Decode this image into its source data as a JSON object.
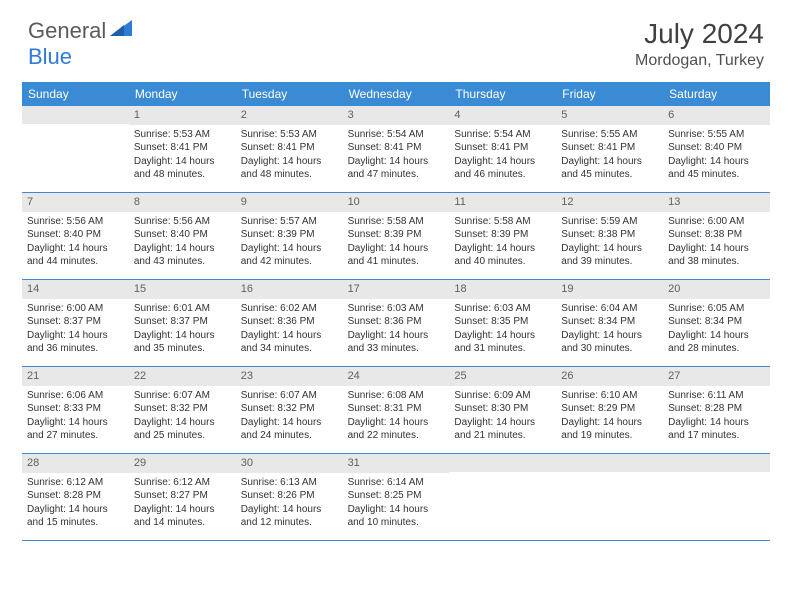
{
  "logo": {
    "part1": "General",
    "part2": "Blue"
  },
  "title": "July 2024",
  "location": "Mordogan, Turkey",
  "colors": {
    "header_bg": "#3b8bd4",
    "header_text": "#ffffff",
    "daynum_bg": "#e8e8e8",
    "border": "#3b8bd4",
    "logo_gray": "#5a5a5a",
    "logo_blue": "#2e7cd6"
  },
  "day_names": [
    "Sunday",
    "Monday",
    "Tuesday",
    "Wednesday",
    "Thursday",
    "Friday",
    "Saturday"
  ],
  "weeks": [
    [
      {
        "n": "",
        "sr": "",
        "ss": "",
        "dl": ""
      },
      {
        "n": "1",
        "sr": "Sunrise: 5:53 AM",
        "ss": "Sunset: 8:41 PM",
        "dl": "Daylight: 14 hours and 48 minutes."
      },
      {
        "n": "2",
        "sr": "Sunrise: 5:53 AM",
        "ss": "Sunset: 8:41 PM",
        "dl": "Daylight: 14 hours and 48 minutes."
      },
      {
        "n": "3",
        "sr": "Sunrise: 5:54 AM",
        "ss": "Sunset: 8:41 PM",
        "dl": "Daylight: 14 hours and 47 minutes."
      },
      {
        "n": "4",
        "sr": "Sunrise: 5:54 AM",
        "ss": "Sunset: 8:41 PM",
        "dl": "Daylight: 14 hours and 46 minutes."
      },
      {
        "n": "5",
        "sr": "Sunrise: 5:55 AM",
        "ss": "Sunset: 8:41 PM",
        "dl": "Daylight: 14 hours and 45 minutes."
      },
      {
        "n": "6",
        "sr": "Sunrise: 5:55 AM",
        "ss": "Sunset: 8:40 PM",
        "dl": "Daylight: 14 hours and 45 minutes."
      }
    ],
    [
      {
        "n": "7",
        "sr": "Sunrise: 5:56 AM",
        "ss": "Sunset: 8:40 PM",
        "dl": "Daylight: 14 hours and 44 minutes."
      },
      {
        "n": "8",
        "sr": "Sunrise: 5:56 AM",
        "ss": "Sunset: 8:40 PM",
        "dl": "Daylight: 14 hours and 43 minutes."
      },
      {
        "n": "9",
        "sr": "Sunrise: 5:57 AM",
        "ss": "Sunset: 8:39 PM",
        "dl": "Daylight: 14 hours and 42 minutes."
      },
      {
        "n": "10",
        "sr": "Sunrise: 5:58 AM",
        "ss": "Sunset: 8:39 PM",
        "dl": "Daylight: 14 hours and 41 minutes."
      },
      {
        "n": "11",
        "sr": "Sunrise: 5:58 AM",
        "ss": "Sunset: 8:39 PM",
        "dl": "Daylight: 14 hours and 40 minutes."
      },
      {
        "n": "12",
        "sr": "Sunrise: 5:59 AM",
        "ss": "Sunset: 8:38 PM",
        "dl": "Daylight: 14 hours and 39 minutes."
      },
      {
        "n": "13",
        "sr": "Sunrise: 6:00 AM",
        "ss": "Sunset: 8:38 PM",
        "dl": "Daylight: 14 hours and 38 minutes."
      }
    ],
    [
      {
        "n": "14",
        "sr": "Sunrise: 6:00 AM",
        "ss": "Sunset: 8:37 PM",
        "dl": "Daylight: 14 hours and 36 minutes."
      },
      {
        "n": "15",
        "sr": "Sunrise: 6:01 AM",
        "ss": "Sunset: 8:37 PM",
        "dl": "Daylight: 14 hours and 35 minutes."
      },
      {
        "n": "16",
        "sr": "Sunrise: 6:02 AM",
        "ss": "Sunset: 8:36 PM",
        "dl": "Daylight: 14 hours and 34 minutes."
      },
      {
        "n": "17",
        "sr": "Sunrise: 6:03 AM",
        "ss": "Sunset: 8:36 PM",
        "dl": "Daylight: 14 hours and 33 minutes."
      },
      {
        "n": "18",
        "sr": "Sunrise: 6:03 AM",
        "ss": "Sunset: 8:35 PM",
        "dl": "Daylight: 14 hours and 31 minutes."
      },
      {
        "n": "19",
        "sr": "Sunrise: 6:04 AM",
        "ss": "Sunset: 8:34 PM",
        "dl": "Daylight: 14 hours and 30 minutes."
      },
      {
        "n": "20",
        "sr": "Sunrise: 6:05 AM",
        "ss": "Sunset: 8:34 PM",
        "dl": "Daylight: 14 hours and 28 minutes."
      }
    ],
    [
      {
        "n": "21",
        "sr": "Sunrise: 6:06 AM",
        "ss": "Sunset: 8:33 PM",
        "dl": "Daylight: 14 hours and 27 minutes."
      },
      {
        "n": "22",
        "sr": "Sunrise: 6:07 AM",
        "ss": "Sunset: 8:32 PM",
        "dl": "Daylight: 14 hours and 25 minutes."
      },
      {
        "n": "23",
        "sr": "Sunrise: 6:07 AM",
        "ss": "Sunset: 8:32 PM",
        "dl": "Daylight: 14 hours and 24 minutes."
      },
      {
        "n": "24",
        "sr": "Sunrise: 6:08 AM",
        "ss": "Sunset: 8:31 PM",
        "dl": "Daylight: 14 hours and 22 minutes."
      },
      {
        "n": "25",
        "sr": "Sunrise: 6:09 AM",
        "ss": "Sunset: 8:30 PM",
        "dl": "Daylight: 14 hours and 21 minutes."
      },
      {
        "n": "26",
        "sr": "Sunrise: 6:10 AM",
        "ss": "Sunset: 8:29 PM",
        "dl": "Daylight: 14 hours and 19 minutes."
      },
      {
        "n": "27",
        "sr": "Sunrise: 6:11 AM",
        "ss": "Sunset: 8:28 PM",
        "dl": "Daylight: 14 hours and 17 minutes."
      }
    ],
    [
      {
        "n": "28",
        "sr": "Sunrise: 6:12 AM",
        "ss": "Sunset: 8:28 PM",
        "dl": "Daylight: 14 hours and 15 minutes."
      },
      {
        "n": "29",
        "sr": "Sunrise: 6:12 AM",
        "ss": "Sunset: 8:27 PM",
        "dl": "Daylight: 14 hours and 14 minutes."
      },
      {
        "n": "30",
        "sr": "Sunrise: 6:13 AM",
        "ss": "Sunset: 8:26 PM",
        "dl": "Daylight: 14 hours and 12 minutes."
      },
      {
        "n": "31",
        "sr": "Sunrise: 6:14 AM",
        "ss": "Sunset: 8:25 PM",
        "dl": "Daylight: 14 hours and 10 minutes."
      },
      {
        "n": "",
        "sr": "",
        "ss": "",
        "dl": ""
      },
      {
        "n": "",
        "sr": "",
        "ss": "",
        "dl": ""
      },
      {
        "n": "",
        "sr": "",
        "ss": "",
        "dl": ""
      }
    ]
  ]
}
